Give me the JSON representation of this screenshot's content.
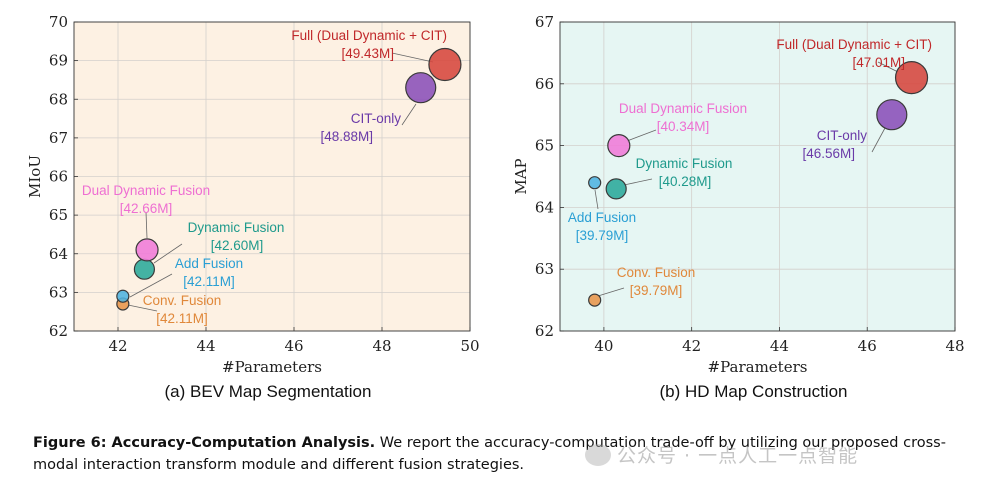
{
  "chart_data": [
    {
      "type": "scatter",
      "subtitle": "(a) BEV Map Segmentation",
      "xlabel": "#Parameters",
      "ylabel": "MIoU",
      "xlim": [
        41,
        50
      ],
      "ylim": [
        62,
        70
      ],
      "xticks": [
        42,
        44,
        46,
        48,
        50
      ],
      "yticks": [
        62,
        63,
        64,
        65,
        66,
        67,
        68,
        69,
        70
      ],
      "grid": true,
      "background": "#fdf1e3",
      "points": [
        {
          "name": "Conv. Fusion",
          "params": "[42.11M]",
          "x": 42.11,
          "y": 62.7,
          "color": "#e8954a"
        },
        {
          "name": "Add Fusion",
          "params": "[42.11M]",
          "x": 42.11,
          "y": 62.9,
          "color": "#4fb3e0"
        },
        {
          "name": "Dynamic Fusion",
          "params": "[42.60M]",
          "x": 42.6,
          "y": 63.6,
          "color": "#2aa89a"
        },
        {
          "name": "Dual Dynamic Fusion",
          "params": "[42.66M]",
          "x": 42.66,
          "y": 64.1,
          "color": "#f07ad8"
        },
        {
          "name": "CIT-only",
          "params": "[48.88M]",
          "x": 48.88,
          "y": 68.3,
          "color": "#8a4fb8"
        },
        {
          "name": "Full (Dual Dynamic + CIT)",
          "params": "[49.43M]",
          "x": 49.43,
          "y": 68.9,
          "color": "#d6453c"
        }
      ]
    },
    {
      "type": "scatter",
      "subtitle": "(b) HD Map Construction",
      "xlabel": "#Parameters",
      "ylabel": "MAP",
      "xlim": [
        39,
        48
      ],
      "ylim": [
        62,
        67
      ],
      "xticks": [
        40,
        42,
        44,
        46,
        48
      ],
      "yticks": [
        62,
        63,
        64,
        65,
        66,
        67
      ],
      "grid": true,
      "background": "#e6f6f3",
      "points": [
        {
          "name": "Conv. Fusion",
          "params": "[39.79M]",
          "x": 39.79,
          "y": 62.5,
          "color": "#e8954a"
        },
        {
          "name": "Add Fusion",
          "params": "[39.79M]",
          "x": 39.79,
          "y": 64.4,
          "color": "#4fb3e0"
        },
        {
          "name": "Dynamic Fusion",
          "params": "[40.28M]",
          "x": 40.28,
          "y": 64.3,
          "color": "#2aa89a"
        },
        {
          "name": "Dual Dynamic Fusion",
          "params": "[40.34M]",
          "x": 40.34,
          "y": 65.0,
          "color": "#f07ad8"
        },
        {
          "name": "CIT-only",
          "params": "[46.56M]",
          "x": 46.56,
          "y": 65.5,
          "color": "#8a4fb8"
        },
        {
          "name": "Full (Dual Dynamic + CIT)",
          "params": "[47.01M]",
          "x": 47.01,
          "y": 66.1,
          "color": "#d6453c"
        }
      ]
    }
  ],
  "caption": {
    "label": "Figure 6: Accuracy-Computation Analysis.",
    "text": " We report the accuracy-computation trade-off by utilizing our proposed cross-modal interaction transform module and different fusion strategies."
  },
  "watermark": "公众号 · 一点人工一点智能",
  "watermark_icon": "wechat-icon"
}
